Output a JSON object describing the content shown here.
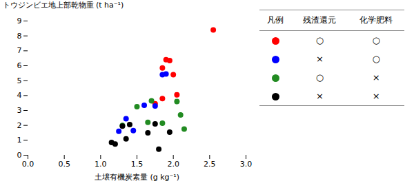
{
  "chart_data": {
    "type": "scatter",
    "xlabel": "土壌有機炭素量 (g kg⁻¹)",
    "ylabel": "トウジンビエ地上部乾物重 (t ha⁻¹)",
    "xlim": [
      0.0,
      3.0
    ],
    "ylim": [
      0,
      9
    ],
    "xticks": [
      {
        "value": 0.0,
        "label": "0.0"
      },
      0.5,
      {
        "value": 1.0,
        "label": "1.0"
      },
      1.5,
      {
        "value": 2.0,
        "label": "2.0"
      },
      2.5,
      {
        "value": 3.0,
        "label": "3.0"
      }
    ],
    "yticks": [
      0,
      1,
      2,
      3,
      4,
      5,
      6,
      7,
      8,
      9
    ],
    "grid": false,
    "legend_title": "凡例",
    "legend_columns": [
      "残渣還元",
      "化学肥料"
    ],
    "series": [
      {
        "color": "#ff0000",
        "x": [
          1.75,
          1.85,
          1.85,
          1.9,
          1.95,
          2.0,
          2.05,
          2.55
        ],
        "values": [
          3.45,
          3.8,
          5.85,
          6.4,
          6.35,
          5.4,
          4.05,
          8.4
        ],
        "legend_marks": [
          "○",
          "○"
        ]
      },
      {
        "color": "#0000ff",
        "x": [
          1.25,
          1.35,
          1.45,
          1.6,
          1.75,
          1.85,
          1.9
        ],
        "values": [
          1.6,
          2.45,
          1.65,
          3.35,
          3.3,
          5.4,
          5.45
        ],
        "legend_marks": [
          "×",
          "○"
        ]
      },
      {
        "color": "#228B22",
        "x": [
          1.3,
          1.5,
          1.65,
          1.7,
          1.85,
          2.05,
          2.1,
          2.15
        ],
        "values": [
          2.0,
          3.25,
          2.2,
          3.65,
          2.15,
          3.6,
          2.7,
          1.75
        ],
        "legend_marks": [
          "○",
          "×"
        ]
      },
      {
        "color": "#000000",
        "x": [
          1.15,
          1.2,
          1.3,
          1.35,
          1.4,
          1.65,
          1.75,
          1.8,
          1.95
        ],
        "values": [
          0.85,
          0.75,
          1.95,
          1.1,
          2.05,
          1.5,
          2.1,
          0.4,
          1.55
        ],
        "legend_marks": [
          "×",
          "×"
        ]
      }
    ]
  }
}
